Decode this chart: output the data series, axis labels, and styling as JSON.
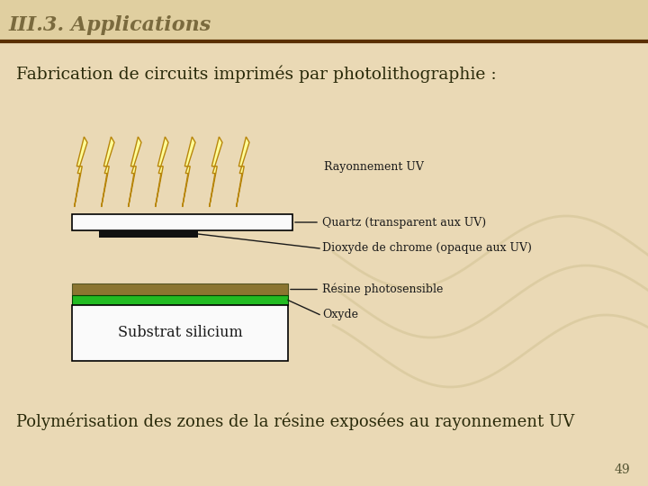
{
  "bg_color": "#EAD9B5",
  "header_color": "#E0CFA0",
  "header_text": "III.3. Applications",
  "header_text_color": "#7A6A3E",
  "header_line_color": "#5A3000",
  "title_text": "Fabrication de circuits imp rimés par photolithographie :",
  "title_color": "#2A2A0A",
  "subtitle_text": "Polymérisation des zones de la résine exposées au rayonnement UV",
  "subtitle_color": "#2A2A0A",
  "page_number": "49",
  "label_uv": "Rayonnement UV",
  "label_quartz": "Quartz (transparent aux UV)",
  "label_chrome": "Dioxyde de chrome (opaque aux UV)",
  "label_resine": "Résine photosensible",
  "label_oxyde": "Oxyde",
  "label_substrat": "Substrat silicium",
  "quartz_color": "#FAFAFA",
  "quartz_border": "#000000",
  "chrome_color": "#111111",
  "resine_color": "#8B7530",
  "oxyde_color": "#22BB22",
  "substrat_color": "#FAFAFA",
  "substrat_border": "#000000",
  "lightning_fill": "#FFFF99",
  "lightning_stroke": "#B8860B",
  "wave_color": "#D0C090",
  "label_color": "#1A1A1A",
  "title_real": "Fabrication de circuits imprimés par photolithographie :"
}
